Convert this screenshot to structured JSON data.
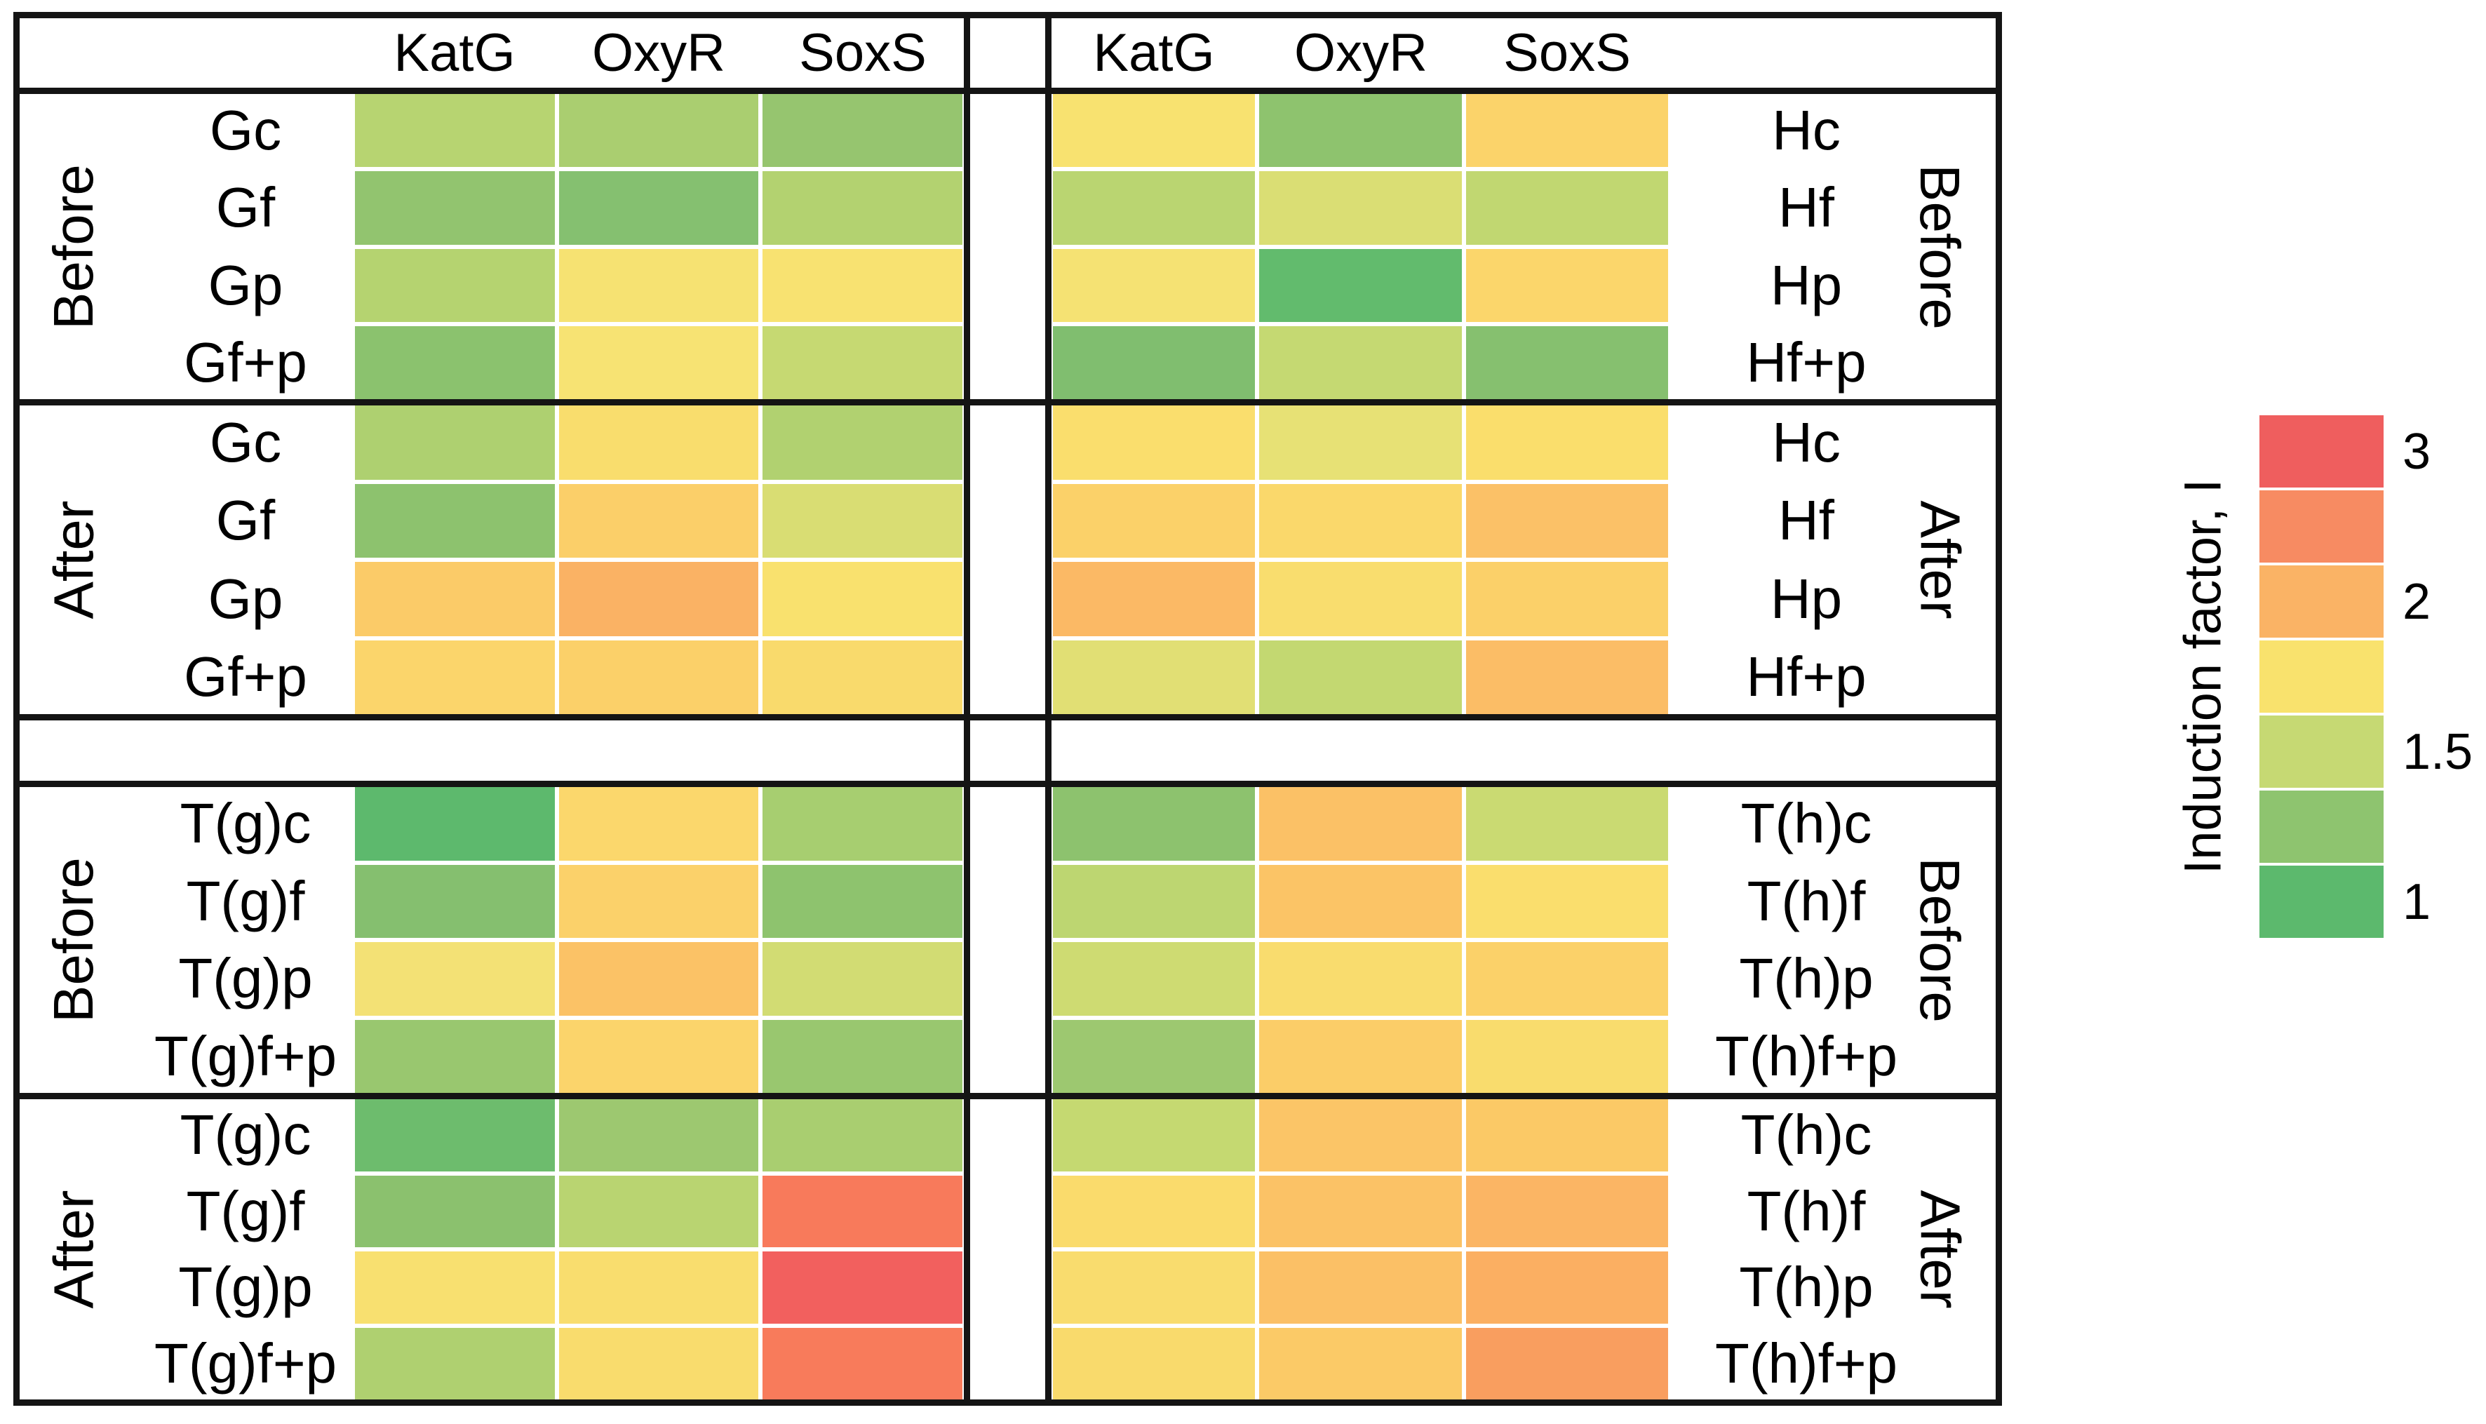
{
  "legend": {
    "title": "Induction factor, I",
    "colors": [
      "#ef5e5e",
      "#f78b62",
      "#fab365",
      "#f9e26d",
      "#c6d973",
      "#8ec46f",
      "#5cb96d"
    ],
    "ticks": [
      {
        "label": "3",
        "block": 0
      },
      {
        "label": "2",
        "block": 2
      },
      {
        "label": "1.5",
        "block": 4
      },
      {
        "label": "1",
        "block": 6
      }
    ]
  },
  "chart_data": {
    "type": "heatmap",
    "value_label": "Induction factor, I",
    "value_range": [
      1,
      3
    ],
    "grid": false,
    "legend_position": "right",
    "columns": [
      "KatG",
      "OxyR",
      "SoxS"
    ],
    "panels": [
      {
        "id": "G",
        "band": "top",
        "side": "left",
        "sections": [
          {
            "label": "Before",
            "rows": [
              {
                "label": "Gc",
                "values": [
                  1.45,
                  1.4,
                  1.3
                ],
                "colors": [
                  "#b7d471",
                  "#aace70",
                  "#96c56f"
                ]
              },
              {
                "label": "Gf",
                "values": [
                  1.3,
                  1.25,
                  1.45
                ],
                "colors": [
                  "#92c46f",
                  "#85c070",
                  "#b3d270"
                ]
              },
              {
                "label": "Gp",
                "values": [
                  1.45,
                  1.75,
                  1.75
                ],
                "colors": [
                  "#b5d370",
                  "#f6e272",
                  "#f8e271"
                ]
              },
              {
                "label": "Gf+p",
                "values": [
                  1.25,
                  1.75,
                  1.5
                ],
                "colors": [
                  "#8bc26e",
                  "#f7e373",
                  "#c6d972"
                ]
              }
            ]
          },
          {
            "label": "After",
            "rows": [
              {
                "label": "Gc",
                "values": [
                  1.4,
                  1.8,
                  1.4
                ],
                "colors": [
                  "#aed070",
                  "#f9dd6d",
                  "#b1d170"
                ]
              },
              {
                "label": "Gf",
                "values": [
                  1.25,
                  1.9,
                  1.6
                ],
                "colors": [
                  "#8dc26e",
                  "#fbcf69",
                  "#d9dd73"
                ]
              },
              {
                "label": "Gp",
                "values": [
                  1.9,
                  2.05,
                  1.75
                ],
                "colors": [
                  "#fbcb68",
                  "#fab264",
                  "#f9e16e"
                ]
              },
              {
                "label": "Gf+p",
                "values": [
                  1.85,
                  1.9,
                  1.8
                ],
                "colors": [
                  "#fbd56b",
                  "#fbd069",
                  "#f9da6c"
                ]
              }
            ]
          }
        ]
      },
      {
        "id": "H",
        "band": "top",
        "side": "right",
        "sections": [
          {
            "label": "Before",
            "rows": [
              {
                "label": "Hc",
                "values": [
                  1.75,
                  1.3,
                  1.85
                ],
                "colors": [
                  "#f8e270",
                  "#8ec36e",
                  "#fbd36a"
                ]
              },
              {
                "label": "Hf",
                "values": [
                  1.45,
                  1.6,
                  1.5
                ],
                "colors": [
                  "#bad571",
                  "#dade74",
                  "#c1d771"
                ]
              },
              {
                "label": "Hp",
                "values": [
                  1.75,
                  1.05,
                  1.85
                ],
                "colors": [
                  "#f5e273",
                  "#62bb6d",
                  "#fbd66b"
                ]
              },
              {
                "label": "Hf+p",
                "values": [
                  1.2,
                  1.5,
                  1.25
                ],
                "colors": [
                  "#80be6f",
                  "#c5d972",
                  "#86c06f"
                ]
              }
            ]
          },
          {
            "label": "After",
            "rows": [
              {
                "label": "Hc",
                "values": [
                  1.8,
                  1.65,
                  1.8
                ],
                "colors": [
                  "#fade6d",
                  "#e7e175",
                  "#fade6c"
                ]
              },
              {
                "label": "Hf",
                "values": [
                  1.9,
                  1.85,
                  2.0
                ],
                "colors": [
                  "#fbd169",
                  "#fad86b",
                  "#fbc167"
                ]
              },
              {
                "label": "Hp",
                "values": [
                  2.05,
                  1.8,
                  1.9
                ],
                "colors": [
                  "#fbb965",
                  "#f9dd6e",
                  "#fbd069"
                ]
              },
              {
                "label": "Hf+p",
                "values": [
                  1.65,
                  1.5,
                  2.0
                ],
                "colors": [
                  "#e1df74",
                  "#c3d871",
                  "#fbbd66"
                ]
              }
            ]
          }
        ]
      },
      {
        "id": "T(g)",
        "band": "bottom",
        "side": "left",
        "sections": [
          {
            "label": "Before",
            "rows": [
              {
                "label": "T(g)c",
                "values": [
                  1.0,
                  1.85,
                  1.4
                ],
                "colors": [
                  "#5db96d",
                  "#fbd76c",
                  "#a7ce70"
                ]
              },
              {
                "label": "T(g)f",
                "values": [
                  1.2,
                  1.9,
                  1.3
                ],
                "colors": [
                  "#85bf6f",
                  "#fbd16a",
                  "#8ec36e"
                ]
              },
              {
                "label": "T(g)p",
                "values": [
                  1.75,
                  2.0,
                  1.55
                ],
                "colors": [
                  "#f3e175",
                  "#fbc266",
                  "#d2dc73"
                ]
              },
              {
                "label": "T(g)f+p",
                "values": [
                  1.35,
                  1.85,
                  1.35
                ],
                "colors": [
                  "#99c76f",
                  "#fbd46b",
                  "#99c76f"
                ]
              }
            ]
          },
          {
            "label": "After",
            "rows": [
              {
                "label": "T(g)c",
                "values": [
                  1.1,
                  1.35,
                  1.4
                ],
                "colors": [
                  "#6dbc6d",
                  "#9dc870",
                  "#a9ce70"
                ]
              },
              {
                "label": "T(g)f",
                "values": [
                  1.25,
                  1.45,
                  2.55
                ],
                "colors": [
                  "#8bc16e",
                  "#b9d471",
                  "#f87a5b"
                ]
              },
              {
                "label": "T(g)p",
                "values": [
                  1.75,
                  1.8,
                  2.95
                ],
                "colors": [
                  "#f8e070",
                  "#f9dd6e",
                  "#f2605e"
                ]
              },
              {
                "label": "T(g)f+p",
                "values": [
                  1.4,
                  1.8,
                  2.55
                ],
                "colors": [
                  "#afd070",
                  "#f9dc6d",
                  "#f87b5b"
                ]
              }
            ]
          }
        ]
      },
      {
        "id": "T(h)",
        "band": "bottom",
        "side": "right",
        "sections": [
          {
            "label": "Before",
            "rows": [
              {
                "label": "T(h)c",
                "values": [
                  1.3,
                  2.0,
                  1.5
                ],
                "colors": [
                  "#8dc26e",
                  "#fbc166",
                  "#cada72"
                ]
              },
              {
                "label": "T(h)f",
                "values": [
                  1.45,
                  1.95,
                  1.8
                ],
                "colors": [
                  "#bdd671",
                  "#fbc466",
                  "#fade6d"
                ]
              },
              {
                "label": "T(h)p",
                "values": [
                  1.5,
                  1.8,
                  1.9
                ],
                "colors": [
                  "#cedb72",
                  "#f9dc6e",
                  "#fbd169"
                ]
              },
              {
                "label": "T(h)f+p",
                "values": [
                  1.35,
                  1.9,
                  1.8
                ],
                "colors": [
                  "#9dc870",
                  "#fbcd68",
                  "#f9dc6d"
                ]
              }
            ]
          },
          {
            "label": "After",
            "rows": [
              {
                "label": "T(h)c",
                "values": [
                  1.5,
                  1.95,
                  1.9
                ],
                "colors": [
                  "#c5d971",
                  "#fbc567",
                  "#fbc966"
                ]
              },
              {
                "label": "T(h)f",
                "values": [
                  1.8,
                  2.0,
                  2.05
                ],
                "colors": [
                  "#fadb6c",
                  "#fbc266",
                  "#fbb564"
                ]
              },
              {
                "label": "T(h)p",
                "values": [
                  1.8,
                  2.0,
                  2.1
                ],
                "colors": [
                  "#f9dc6e",
                  "#fbc066",
                  "#fbaf62"
                ]
              },
              {
                "label": "T(h)f+p",
                "values": [
                  1.8,
                  1.9,
                  2.2
                ],
                "colors": [
                  "#f9da6c",
                  "#fbca67",
                  "#f99e5f"
                ]
              }
            ]
          }
        ]
      }
    ]
  }
}
